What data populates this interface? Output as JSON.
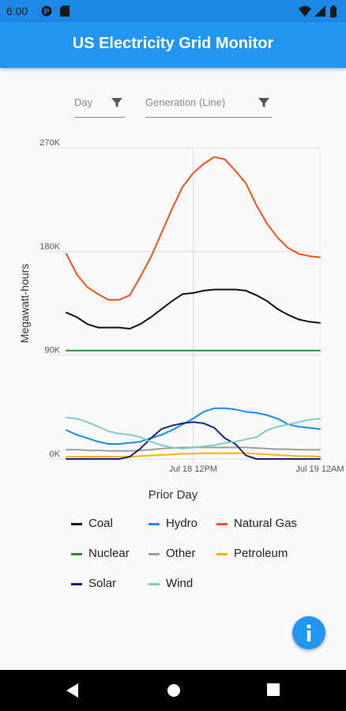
{
  "status_bar": {
    "time": "6:00"
  },
  "app_bar": {
    "title": "US Electricity Grid Monitor"
  },
  "filters": {
    "period_label": "Day",
    "view_label": "Generation (Line)"
  },
  "chart_data": {
    "type": "line",
    "title": "Prior Day",
    "ylabel": "Megawatt-hours",
    "xlabel": "",
    "ylim": [
      0,
      270000
    ],
    "yticks": [
      0,
      90000,
      180000,
      270000
    ],
    "ytick_labels": [
      "0K",
      "90K",
      "180K",
      "270K"
    ],
    "xtick_labels": [
      "Jul 18 12PM",
      "Jul 19 12AM"
    ],
    "grid": true,
    "legend_position": "bottom",
    "hours": [
      0,
      1,
      2,
      3,
      4,
      5,
      6,
      7,
      8,
      9,
      10,
      11,
      12,
      13,
      14,
      15,
      16,
      17,
      18,
      19,
      20,
      21,
      22,
      23,
      24
    ],
    "series": [
      {
        "name": "Coal",
        "color": "#111111",
        "values": [
          127000,
          123000,
          117000,
          114000,
          114000,
          114000,
          113000,
          117000,
          123000,
          130000,
          137000,
          143000,
          144000,
          146000,
          147000,
          147000,
          147000,
          146000,
          142000,
          137000,
          130000,
          125000,
          121000,
          119000,
          118000
        ]
      },
      {
        "name": "Hydro",
        "color": "#1e88e5",
        "values": [
          25000,
          21000,
          18000,
          15000,
          13000,
          13000,
          14000,
          15000,
          18000,
          21000,
          25000,
          30000,
          35000,
          41000,
          44000,
          44000,
          43000,
          41000,
          40000,
          38000,
          35000,
          30000,
          28000,
          27000,
          26000
        ]
      },
      {
        "name": "Natural Gas",
        "color": "#f4511e",
        "values": [
          178000,
          160000,
          149000,
          143000,
          138000,
          138000,
          142000,
          158000,
          175000,
          196000,
          217000,
          236000,
          248000,
          256000,
          262000,
          260000,
          250000,
          239000,
          220000,
          204000,
          192000,
          183000,
          178000,
          176000,
          175000
        ]
      },
      {
        "name": "Nuclear",
        "color": "#2e8b2e",
        "values": [
          94000,
          94000,
          94000,
          94000,
          94000,
          94000,
          94000,
          94000,
          94000,
          94000,
          94000,
          94000,
          94000,
          94000,
          94000,
          94000,
          94000,
          94000,
          94000,
          94000,
          94000,
          94000,
          94000,
          94000,
          94000
        ]
      },
      {
        "name": "Other",
        "color": "#9e9e9e",
        "values": [
          8000,
          8000,
          7500,
          7500,
          7000,
          7000,
          7000,
          7500,
          8000,
          9000,
          9500,
          10000,
          10000,
          10000,
          10000,
          10000,
          10000,
          10000,
          9500,
          9000,
          8500,
          8500,
          8000,
          8000,
          8000
        ]
      },
      {
        "name": "Petroleum",
        "color": "#ffb300",
        "values": [
          2000,
          2000,
          2000,
          2000,
          2000,
          2000,
          2000,
          2500,
          3000,
          3500,
          4000,
          4500,
          4500,
          5000,
          5000,
          5000,
          5000,
          5000,
          4500,
          4000,
          3500,
          3000,
          2500,
          2500,
          2000
        ]
      },
      {
        "name": "Solar",
        "color": "#1a237e",
        "values": [
          0,
          0,
          0,
          0,
          0,
          0,
          2000,
          9000,
          18000,
          26000,
          29000,
          31000,
          32000,
          31000,
          27000,
          18000,
          13000,
          3000,
          0,
          0,
          0,
          0,
          0,
          0,
          0
        ]
      },
      {
        "name": "Wind",
        "color": "#80cbc4",
        "values": [
          36000,
          35000,
          32000,
          28000,
          24000,
          22000,
          21000,
          19000,
          15000,
          12000,
          10000,
          9000,
          10000,
          11000,
          12000,
          14000,
          15000,
          17000,
          19000,
          25000,
          28000,
          30000,
          32000,
          34000,
          35000
        ]
      }
    ]
  },
  "legend": [
    {
      "label": "Coal",
      "color": "#111111"
    },
    {
      "label": "Hydro",
      "color": "#1e88e5"
    },
    {
      "label": "Natural Gas",
      "color": "#f4511e"
    },
    {
      "label": "Nuclear",
      "color": "#2e8b2e"
    },
    {
      "label": "Other",
      "color": "#9e9e9e"
    },
    {
      "label": "Petroleum",
      "color": "#ffb300"
    },
    {
      "label": "Solar",
      "color": "#1a237e"
    },
    {
      "label": "Wind",
      "color": "#80cbc4"
    }
  ],
  "fab": {
    "icon": "info-icon"
  },
  "nav": {
    "back_icon": "back-icon",
    "home_icon": "home-icon",
    "recents_icon": "recents-icon"
  },
  "colors": {
    "primary": "#2196f3",
    "status_bar": "#1e88e5"
  }
}
